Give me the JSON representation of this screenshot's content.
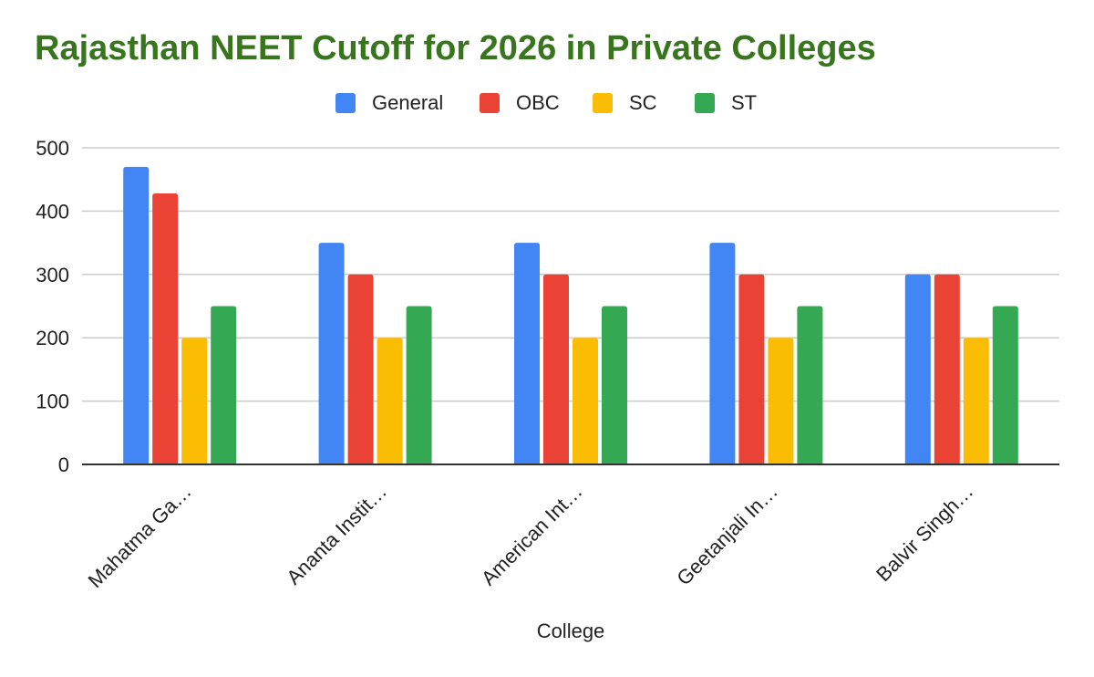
{
  "chart_data": {
    "type": "bar",
    "title": "Rajasthan NEET Cutoff for 2026 in Private Colleges",
    "xlabel": "College",
    "ylabel": "",
    "categories": [
      "Mahatma Ga…",
      "Ananta Instit…",
      "American Int…",
      "Geetanjali In…",
      "Balvir Singh…"
    ],
    "series": [
      {
        "name": "General",
        "color": "#4285f4",
        "values": [
          470,
          350,
          350,
          350,
          300
        ]
      },
      {
        "name": "OBC",
        "color": "#ea4335",
        "values": [
          428,
          300,
          300,
          300,
          300
        ]
      },
      {
        "name": "SC",
        "color": "#fbbc04",
        "values": [
          200,
          200,
          200,
          200,
          200
        ]
      },
      {
        "name": "ST",
        "color": "#34a853",
        "values": [
          250,
          250,
          250,
          250,
          250
        ]
      }
    ],
    "ylim": [
      0,
      500
    ],
    "yticks": [
      "0",
      "100",
      "200",
      "300",
      "400",
      "500"
    ],
    "grid": true,
    "legend_position": "top"
  },
  "colors": {
    "title": "#38761d",
    "gridline": "#cccccc",
    "baseline": "#333333",
    "text": "#222222"
  }
}
